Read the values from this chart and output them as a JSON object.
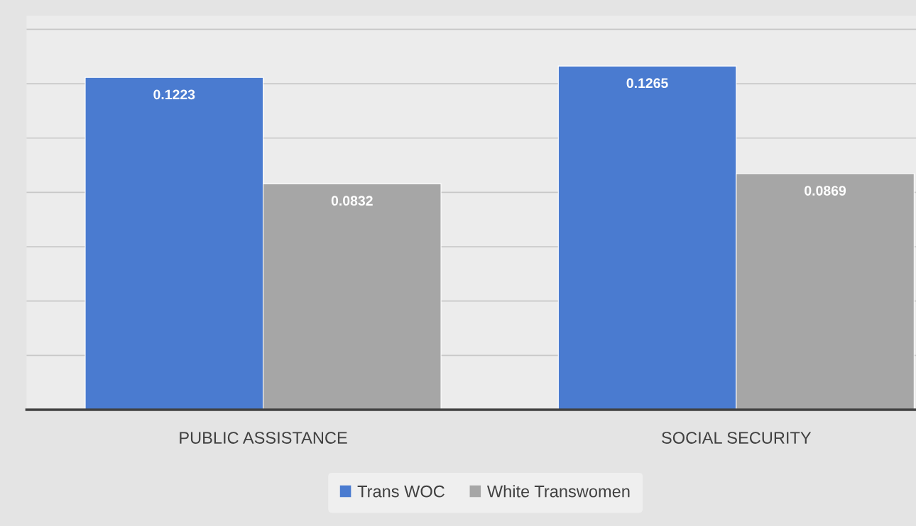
{
  "chart_data": {
    "type": "bar",
    "categories": [
      "PUBLIC ASSISTANCE",
      "SOCIAL SECURITY"
    ],
    "series": [
      {
        "name": "Trans WOC",
        "color": "#4a7bd0",
        "values": [
          0.1223,
          0.1265
        ]
      },
      {
        "name": "White Transwomen",
        "color": "#a6a6a6",
        "values": [
          0.0832,
          0.0869
        ]
      }
    ],
    "ylim": [
      0,
      0.145
    ],
    "yticks": [
      {
        "value": 0,
        "label": null
      },
      {
        "value": 0.02,
        "label": null
      },
      {
        "value": 0.04,
        "label": null
      },
      {
        "value": 0.06,
        "label": null
      },
      {
        "value": 0.08,
        "label": null
      },
      {
        "value": 0.1,
        "label": null
      },
      {
        "value": 0.12,
        "label": null
      },
      {
        "value": 0.14,
        "label": null
      }
    ],
    "tick_labels": "x",
    "grid": "y",
    "legend": "bottom",
    "data_labels": true
  }
}
